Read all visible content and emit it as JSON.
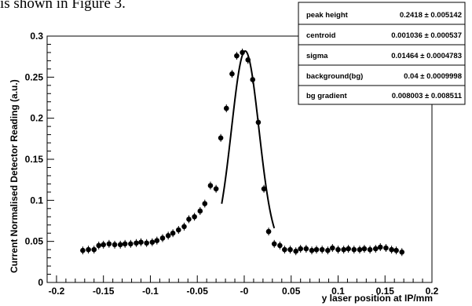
{
  "page": {
    "caption": "is shown in Figure 3."
  },
  "chart_data": {
    "type": "scatter",
    "xlabel": "y laser position at IP/mm",
    "ylabel": "Current Normalised Detector Reading (a.u.)",
    "xlim": [
      -0.21,
      0.2
    ],
    "ylim": [
      0,
      0.3
    ],
    "xticks": [
      {
        "value": -0.2,
        "label": "-0.2"
      },
      {
        "value": -0.15,
        "label": "-0.15"
      },
      {
        "value": -0.1,
        "label": "-0.1"
      },
      {
        "value": -0.05,
        "label": "-0.05"
      },
      {
        "value": 0,
        "label": "-0"
      },
      {
        "value": 0.05,
        "label": "0.05"
      },
      {
        "value": 0.1,
        "label": "0.1"
      },
      {
        "value": 0.15,
        "label": "0.15"
      },
      {
        "value": 0.2,
        "label": "0.2"
      }
    ],
    "yticks": [
      {
        "value": 0,
        "label": "0"
      },
      {
        "value": 0.05,
        "label": "0.05"
      },
      {
        "value": 0.1,
        "label": "0.1"
      },
      {
        "value": 0.15,
        "label": "0.15"
      },
      {
        "value": 0.2,
        "label": "0.2"
      },
      {
        "value": 0.25,
        "label": "0.25"
      },
      {
        "value": 0.3,
        "label": "0.3"
      }
    ],
    "points": [
      {
        "x": -0.172,
        "y": 0.039
      },
      {
        "x": -0.166,
        "y": 0.04
      },
      {
        "x": -0.16,
        "y": 0.04
      },
      {
        "x": -0.155,
        "y": 0.045
      },
      {
        "x": -0.15,
        "y": 0.046
      },
      {
        "x": -0.144,
        "y": 0.047
      },
      {
        "x": -0.138,
        "y": 0.046
      },
      {
        "x": -0.132,
        "y": 0.046
      },
      {
        "x": -0.127,
        "y": 0.047
      },
      {
        "x": -0.121,
        "y": 0.047
      },
      {
        "x": -0.115,
        "y": 0.048
      },
      {
        "x": -0.11,
        "y": 0.049
      },
      {
        "x": -0.104,
        "y": 0.048
      },
      {
        "x": -0.098,
        "y": 0.049
      },
      {
        "x": -0.093,
        "y": 0.051
      },
      {
        "x": -0.087,
        "y": 0.054
      },
      {
        "x": -0.081,
        "y": 0.057
      },
      {
        "x": -0.076,
        "y": 0.06
      },
      {
        "x": -0.07,
        "y": 0.064
      },
      {
        "x": -0.064,
        "y": 0.068
      },
      {
        "x": -0.059,
        "y": 0.077
      },
      {
        "x": -0.053,
        "y": 0.08
      },
      {
        "x": -0.047,
        "y": 0.087
      },
      {
        "x": -0.042,
        "y": 0.096
      },
      {
        "x": -0.036,
        "y": 0.118
      },
      {
        "x": -0.03,
        "y": 0.114
      },
      {
        "x": -0.025,
        "y": 0.176
      },
      {
        "x": -0.019,
        "y": 0.212
      },
      {
        "x": -0.013,
        "y": 0.254
      },
      {
        "x": -0.008,
        "y": 0.276
      },
      {
        "x": -0.002,
        "y": 0.28
      },
      {
        "x": 0.004,
        "y": 0.271
      },
      {
        "x": 0.009,
        "y": 0.247
      },
      {
        "x": 0.015,
        "y": 0.195
      },
      {
        "x": 0.021,
        "y": 0.114
      },
      {
        "x": 0.026,
        "y": 0.062
      },
      {
        "x": 0.032,
        "y": 0.047
      },
      {
        "x": 0.038,
        "y": 0.045
      },
      {
        "x": 0.043,
        "y": 0.04
      },
      {
        "x": 0.049,
        "y": 0.04
      },
      {
        "x": 0.055,
        "y": 0.038
      },
      {
        "x": 0.06,
        "y": 0.041
      },
      {
        "x": 0.066,
        "y": 0.041
      },
      {
        "x": 0.072,
        "y": 0.039
      },
      {
        "x": 0.077,
        "y": 0.04
      },
      {
        "x": 0.083,
        "y": 0.04
      },
      {
        "x": 0.089,
        "y": 0.039
      },
      {
        "x": 0.094,
        "y": 0.042
      },
      {
        "x": 0.1,
        "y": 0.04
      },
      {
        "x": 0.106,
        "y": 0.04
      },
      {
        "x": 0.111,
        "y": 0.041
      },
      {
        "x": 0.117,
        "y": 0.04
      },
      {
        "x": 0.123,
        "y": 0.04
      },
      {
        "x": 0.128,
        "y": 0.041
      },
      {
        "x": 0.134,
        "y": 0.04
      },
      {
        "x": 0.14,
        "y": 0.041
      },
      {
        "x": 0.145,
        "y": 0.043
      },
      {
        "x": 0.151,
        "y": 0.042
      },
      {
        "x": 0.157,
        "y": 0.04
      },
      {
        "x": 0.162,
        "y": 0.039
      },
      {
        "x": 0.168,
        "y": 0.037
      }
    ],
    "fit": {
      "model": "gaussian",
      "x_range": [
        -0.024,
        0.032
      ],
      "peak_height": 0.2418,
      "centroid": 0.001036,
      "sigma": 0.01464,
      "background": 0.04,
      "bg_gradient": 0.008003
    },
    "stats_box": [
      {
        "name": "peak height",
        "value": "0.2418 ± 0.005142"
      },
      {
        "name": "centroid",
        "value": "0.001036 ± 0.000537"
      },
      {
        "name": "sigma",
        "value": "0.01464 ± 0.0004783"
      },
      {
        "name": "background(bg)",
        "value": "0.04 ± 0.0009998"
      },
      {
        "name": "bg gradient",
        "value": "0.008003 ± 0.008511"
      }
    ],
    "colors": {
      "marker": "#000000",
      "fit_line": "#000000",
      "axes": "#000000"
    }
  }
}
